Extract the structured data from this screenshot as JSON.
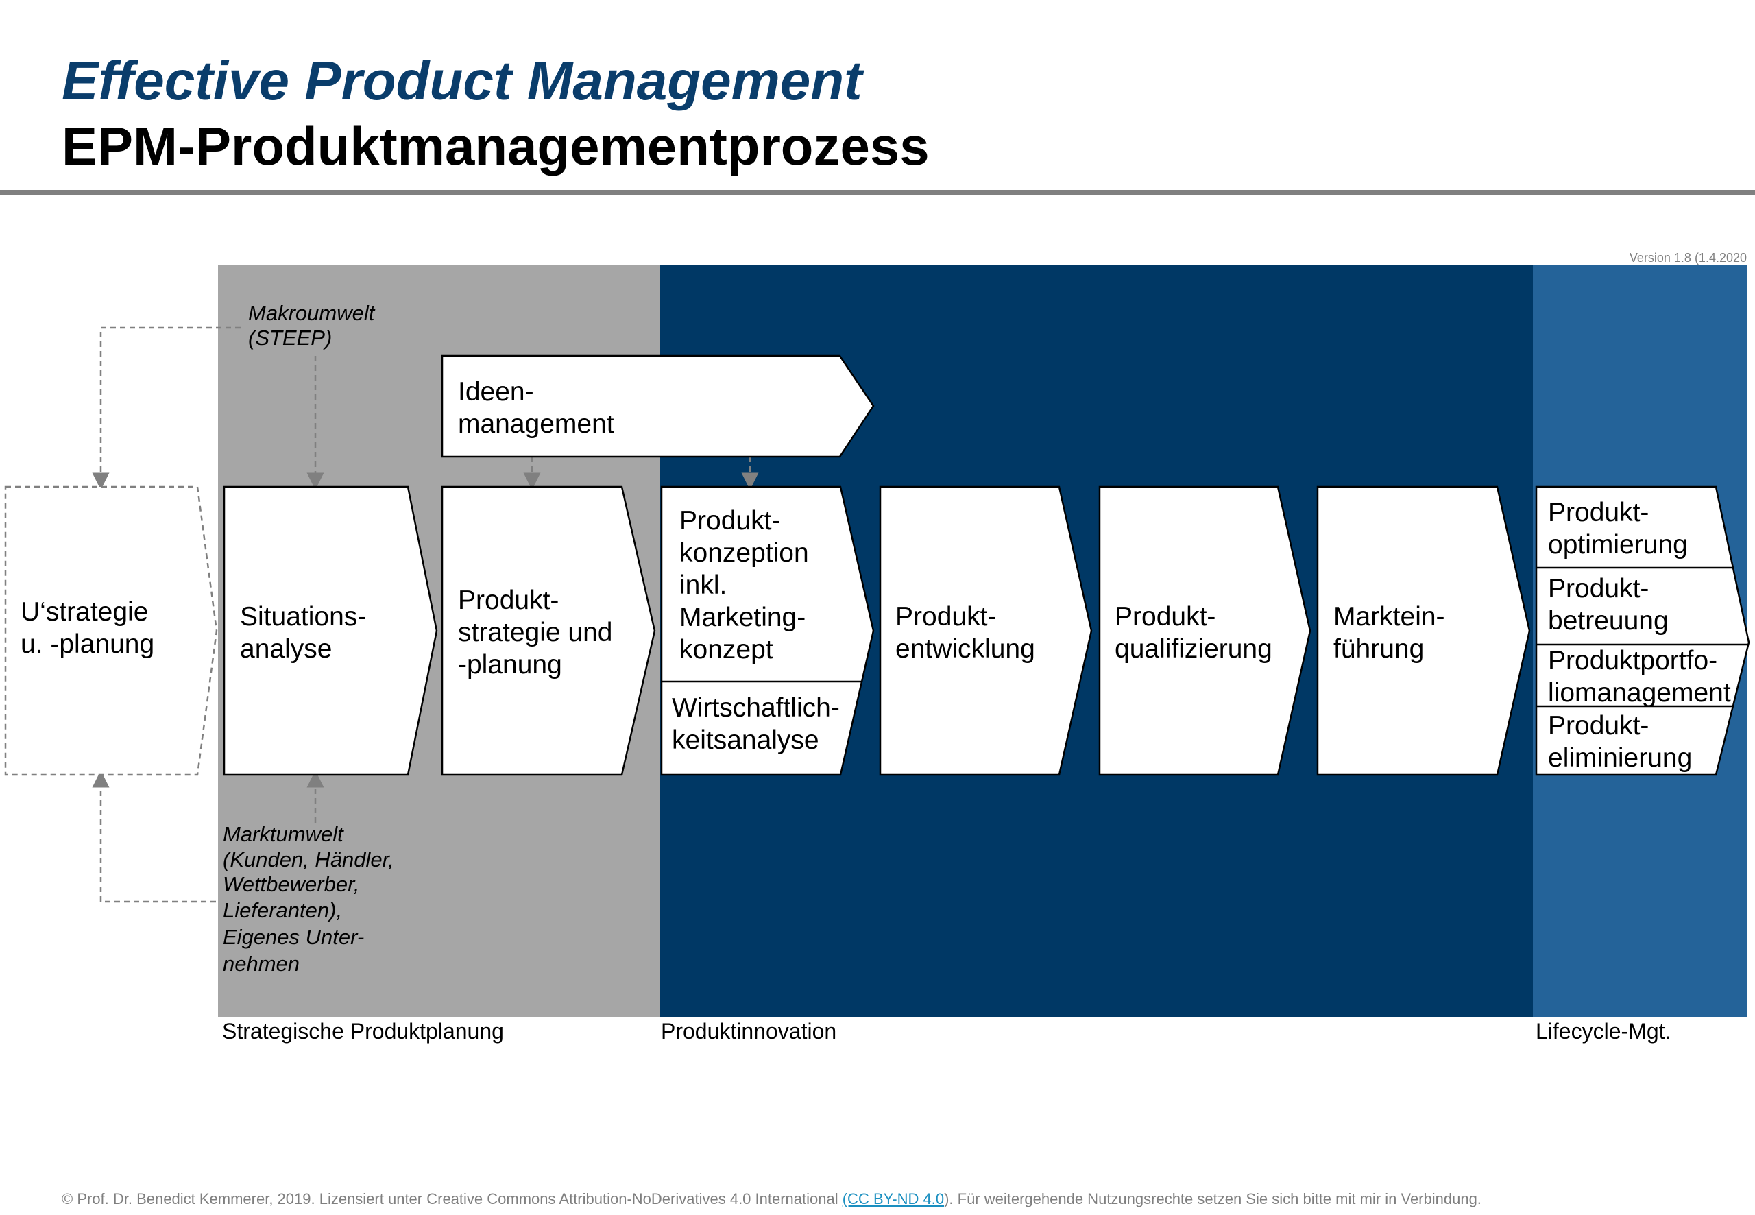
{
  "header": {
    "title": "Effective Product Management",
    "subtitle": "EPM-Produktmanagementprozess"
  },
  "version": "Version 1.8 (1.4.2020",
  "colors": {
    "strategic_band": "#a6a6a6",
    "innovation_band": "#003865",
    "lifecycle_band": "#246399",
    "title_blue": "#0a3d6b"
  },
  "annotations": {
    "makro": [
      "Makroumwelt",
      "(STEEP)"
    ],
    "markt": [
      "Marktumwelt",
      "(Kunden, Händler,",
      "Wettbewerber,",
      "Lieferanten),",
      "Eigenes Unter-",
      "nehmen"
    ]
  },
  "steps": {
    "ustrategie": [
      "U‘strategie",
      "u. -planung"
    ],
    "situation": [
      "Situations-",
      "analyse"
    ],
    "strategie": [
      "Produkt-",
      "strategie und",
      "-planung"
    ],
    "ideen": [
      "Ideen-",
      "management"
    ],
    "konzeption": [
      "Produkt-",
      "konzeption",
      "inkl.",
      "Marketing-",
      "konzept"
    ],
    "wirtschaft": [
      "Wirtschaftlich-",
      "keitsanalyse"
    ],
    "entwicklung": [
      "Produkt-",
      "entwicklung"
    ],
    "qualifizierung": [
      "Produkt-",
      "qualifizierung"
    ],
    "markteinfuehrung": [
      "Marktein-",
      "führung"
    ],
    "lifecycle": [
      [
        "Produkt-",
        "optimierung"
      ],
      [
        "Produkt-",
        "betreuung"
      ],
      [
        "Produktportfo-",
        "liomanagement"
      ],
      [
        "Produkt-",
        "eliminierung"
      ]
    ]
  },
  "phases": {
    "strategic": "Strategische Produktplanung",
    "innovation": "Produktinnovation",
    "lifecycle": "Lifecycle-Mgt."
  },
  "footer": {
    "before": "© Prof. Dr. Benedict Kemmerer, 2019. Lizensiert unter Creative Commons Attribution-NoDerivatives 4.0 International ",
    "link": "(CC BY-ND 4.0",
    "after": "). Für weitergehende Nutzungsrechte setzen Sie sich bitte mit mir in Verbindung."
  }
}
